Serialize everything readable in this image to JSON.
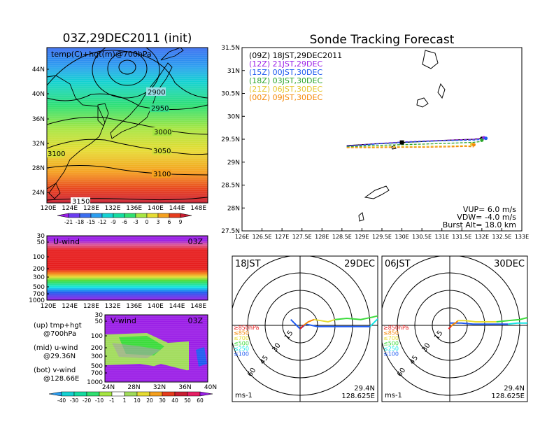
{
  "colors": {
    "purple": "#9a1ee6",
    "red": "#e61e1e",
    "orange": "#f58a0a",
    "yellow": "#e6dc32",
    "green": "#3cdc3c",
    "cyan": "#14e6e6",
    "blue": "#1e5af0",
    "lightgreen": "#96f05a"
  },
  "left_map": {
    "title": "03Z,29DEC2011 (init)",
    "label": "temp(C)+hgt(m)@700hPa",
    "lat_ticks": [
      "44N",
      "40N",
      "36N",
      "32N",
      "28N",
      "24N"
    ],
    "lon_ticks": [
      "120E",
      "124E",
      "128E",
      "132E",
      "136E",
      "140E",
      "144E",
      "148E"
    ],
    "contours": [
      "2900",
      "2950",
      "3000",
      "3050",
      "3100",
      "3100",
      "3100",
      "3150"
    ],
    "colorbar": [
      "-21",
      "-18",
      "-15",
      "-12",
      "-9",
      "-6",
      "-3",
      "0",
      "3",
      "6",
      "9"
    ]
  },
  "uwind": {
    "label": "U-wind",
    "time": "03Z",
    "p_ticks": [
      "30",
      "50",
      "100",
      "200",
      "300",
      "500",
      "700",
      "1000"
    ],
    "lon_ticks": [
      "120E",
      "124E",
      "128E",
      "132E",
      "136E",
      "140E",
      "144E",
      "148E"
    ]
  },
  "vwind": {
    "label": "V-wind",
    "time": "03Z",
    "p_ticks": [
      "30",
      "50",
      "100",
      "200",
      "300",
      "500",
      "700",
      "1000"
    ],
    "lat_ticks": [
      "24N",
      "28N",
      "32N",
      "36N",
      "40N"
    ],
    "colorbar": [
      "-40",
      "-30",
      "-20",
      "-10",
      "-1",
      "1",
      "10",
      "20",
      "30",
      "40",
      "50",
      "60"
    ]
  },
  "legend_notes": [
    {
      "a": "(up) tmp+hgt",
      "b": "@700hPa"
    },
    {
      "a": "(mid) u-wind",
      "b": "@29.36N"
    },
    {
      "a": "(bot) v-wind",
      "b": "@128.66E"
    }
  ],
  "track": {
    "title": "Sonde Tracking Forecast",
    "lat_ticks": [
      "31.5N",
      "31N",
      "30.5N",
      "30N",
      "29.5N",
      "29N",
      "28.5N",
      "28N",
      "27.5N"
    ],
    "lon_ticks": [
      "126E",
      "126.5E",
      "127E",
      "127.5E",
      "128E",
      "128.5E",
      "129E",
      "129.5E",
      "130E",
      "130.5E",
      "131E",
      "131.5E",
      "132E",
      "132.5E",
      "133E"
    ],
    "legend": [
      {
        "text": "(09Z)  18JST,29DEC2011",
        "color": "#000000"
      },
      {
        "text": "(12Z)  21JST,29DEC",
        "color": "#9a1ee6"
      },
      {
        "text": "(15Z)  00JST,30DEC",
        "color": "#1e5af0"
      },
      {
        "text": "(18Z)  03JST,30DEC",
        "color": "#2aa52a"
      },
      {
        "text": "(21Z)  06JST,30DEC",
        "color": "#e6c832"
      },
      {
        "text": "(00Z)  09JST,30DEC",
        "color": "#f58a0a"
      }
    ],
    "params": [
      "VUP= 6.0 m/s",
      "VDW= -4.0 m/s",
      "Burst Alt= 18.0 km"
    ]
  },
  "chart_data": [
    {
      "type": "line",
      "title": "Sonde Tracking Forecast",
      "xlabel": "",
      "ylabel": "",
      "xlim": [
        126,
        133
      ],
      "ylim": [
        27.5,
        31.5
      ],
      "series": [
        {
          "name": "(09Z) 18JST,29DEC2011",
          "color": "#000000",
          "style": "solid",
          "x": [
            128.62,
            129.3,
            130.0,
            130.5,
            131.2,
            131.8,
            132.0
          ],
          "y": [
            29.36,
            29.4,
            29.43,
            29.45,
            29.48,
            29.5,
            29.52
          ]
        },
        {
          "name": "(12Z) 21JST,29DEC",
          "color": "#9a1ee6",
          "style": "dash",
          "x": [
            128.62,
            129.3,
            130.0,
            130.5,
            131.2,
            131.8,
            132.05
          ],
          "y": [
            29.36,
            29.41,
            29.45,
            29.47,
            29.49,
            29.51,
            29.53
          ]
        },
        {
          "name": "(15Z) 00JST,30DEC",
          "color": "#1e5af0",
          "style": "dash",
          "x": [
            128.62,
            129.3,
            130.0,
            130.5,
            131.2,
            131.8,
            132.1
          ],
          "y": [
            29.36,
            29.41,
            29.45,
            29.47,
            29.49,
            29.5,
            29.52
          ]
        },
        {
          "name": "(18Z) 03JST,30DEC",
          "color": "#2aa52a",
          "style": "dash",
          "x": [
            128.62,
            129.3,
            130.0,
            130.5,
            131.2,
            131.8,
            132.0
          ],
          "y": [
            29.36,
            29.39,
            29.41,
            29.42,
            29.44,
            29.46,
            29.48
          ]
        },
        {
          "name": "(21Z) 06JST,30DEC",
          "color": "#e6c832",
          "style": "dash",
          "x": [
            128.62,
            129.3,
            130.0,
            130.5,
            131.2,
            131.6,
            131.75
          ],
          "y": [
            29.36,
            29.37,
            29.38,
            29.38,
            29.39,
            29.4,
            29.39
          ]
        },
        {
          "name": "(00Z) 09JST,30DEC",
          "color": "#f58a0a",
          "style": "dash",
          "x": [
            128.62,
            129.3,
            130.0,
            130.5,
            131.2,
            131.6,
            131.8
          ],
          "y": [
            29.36,
            29.36,
            29.37,
            29.37,
            29.38,
            29.39,
            29.38
          ]
        }
      ]
    },
    {
      "type": "hodograph",
      "title": "18JST 29DEC",
      "date": "29DEC",
      "time": "18JST",
      "pos": "29.4N",
      "lon": "128.625E",
      "unit": "ms-1",
      "ring_labels": [
        "15",
        "30",
        "45",
        "60"
      ],
      "levels": [
        "≥850hPa",
        "≤850",
        "≤700",
        "≤500",
        "≤250",
        "≤100"
      ],
      "level_colors": [
        "#e61e1e",
        "#f58a0a",
        "#e6dc32",
        "#3cdc3c",
        "#14e6e6",
        "#1e5af0"
      ],
      "segments": [
        {
          "color": "#1e5af0",
          "u": [
            -8,
            0,
            5,
            15,
            40,
            60
          ],
          "v": [
            5,
            -3,
            1,
            -1,
            -1,
            -1
          ]
        },
        {
          "color": "#e61e1e",
          "u": [
            0,
            3
          ],
          "v": [
            -3,
            0
          ]
        },
        {
          "color": "#f58a0a",
          "u": [
            3,
            7,
            12
          ],
          "v": [
            0,
            3,
            5
          ]
        },
        {
          "color": "#e6dc32",
          "u": [
            12,
            18,
            24,
            30
          ],
          "v": [
            5,
            4,
            3,
            5
          ]
        },
        {
          "color": "#3cdc3c",
          "u": [
            30,
            40,
            52,
            62,
            75
          ],
          "v": [
            5,
            6,
            5,
            7,
            10
          ]
        },
        {
          "color": "#14e6e6",
          "u": [
            60,
            66,
            70
          ],
          "v": [
            -1,
            5,
            7
          ]
        }
      ]
    },
    {
      "type": "hodograph",
      "title": "06JST 30DEC",
      "date": "30DEC",
      "time": "06JST",
      "pos": "29.4N",
      "lon": "128.625E",
      "unit": "ms-1",
      "ring_labels": [
        "15",
        "30",
        "45",
        "60"
      ],
      "levels": [
        "≥850hPa",
        "≤850",
        "≤700",
        "≤500",
        "≤250",
        "≤100"
      ],
      "level_colors": [
        "#e61e1e",
        "#f58a0a",
        "#e6dc32",
        "#3cdc3c",
        "#14e6e6",
        "#1e5af0"
      ],
      "segments": [
        {
          "color": "#1e5af0",
          "u": [
            0,
            10,
            20,
            30,
            40,
            50
          ],
          "v": [
            2,
            2,
            1,
            1,
            1,
            1
          ]
        },
        {
          "color": "#e61e1e",
          "u": [
            -1,
            1
          ],
          "v": [
            -3,
            -1
          ]
        },
        {
          "color": "#f58a0a",
          "u": [
            1,
            3,
            5,
            7
          ],
          "v": [
            -1,
            1,
            2,
            4
          ]
        },
        {
          "color": "#e6dc32",
          "u": [
            7,
            14,
            22,
            30,
            40
          ],
          "v": [
            4,
            4,
            3,
            3,
            3
          ]
        },
        {
          "color": "#3cdc3c",
          "u": [
            40,
            50,
            60,
            72
          ],
          "v": [
            3,
            4,
            5,
            8
          ]
        },
        {
          "color": "#14e6e6",
          "u": [
            50,
            58,
            66,
            72
          ],
          "v": [
            1,
            2,
            2,
            4
          ]
        }
      ]
    }
  ]
}
